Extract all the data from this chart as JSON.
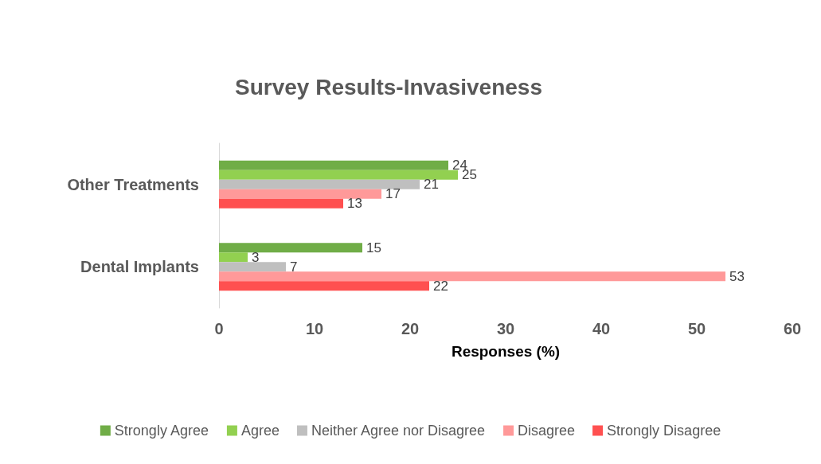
{
  "chart_data": {
    "type": "bar",
    "orientation": "horizontal",
    "title": "Survey Results-Invasiveness",
    "xlabel": "Responses (%)",
    "categories": [
      "Other Treatments",
      "Dental Implants"
    ],
    "series": [
      {
        "name": "Strongly Agree",
        "color": "#70ad47",
        "values": [
          24,
          15
        ]
      },
      {
        "name": "Agree",
        "color": "#92d050",
        "values": [
          25,
          3
        ]
      },
      {
        "name": "Neither Agree nor Disagree",
        "color": "#bfbfbf",
        "values": [
          21,
          7
        ]
      },
      {
        "name": "Disagree",
        "color": "#ff9999",
        "values": [
          17,
          53
        ]
      },
      {
        "name": "Strongly Disagree",
        "color": "#ff5050",
        "values": [
          13,
          22
        ]
      }
    ],
    "xlim": [
      0,
      60
    ],
    "xticks": [
      0,
      10,
      20,
      30,
      40,
      50,
      60
    ],
    "grid": false,
    "legend": "bottom",
    "data_labels": true
  }
}
